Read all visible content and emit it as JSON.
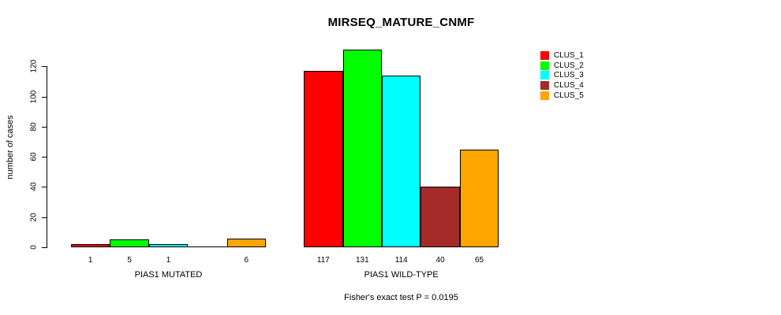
{
  "title": "MIRSEQ_MATURE_CNMF",
  "footer": "Fisher's exact test P = 0.0195",
  "chart_data": {
    "type": "bar",
    "title": "MIRSEQ_MATURE_CNMF",
    "ylabel": "number of cases",
    "xlabel": "",
    "ylim": [
      0,
      131
    ],
    "yticks": [
      0,
      20,
      40,
      60,
      80,
      100,
      120
    ],
    "grid": false,
    "legend": {
      "position": "top-right",
      "entries": [
        {
          "label": "CLUS_1",
          "color": "#ff0000"
        },
        {
          "label": "CLUS_2",
          "color": "#00ff00"
        },
        {
          "label": "CLUS_3",
          "color": "#00ffff"
        },
        {
          "label": "CLUS_4",
          "color": "#a52a2a"
        },
        {
          "label": "CLUS_5",
          "color": "#ffa500"
        }
      ]
    },
    "series_colors": [
      "#ff0000",
      "#00ff00",
      "#00ffff",
      "#a52a2a",
      "#ffa500"
    ],
    "groups": [
      {
        "label": "PIAS1 MUTATED",
        "clusters": [
          "CLUS_1",
          "CLUS_2",
          "CLUS_3",
          "CLUS_4",
          "CLUS_5"
        ],
        "values": [
          1,
          5,
          1,
          0,
          6
        ],
        "bar_labels": [
          "1",
          "5",
          "1",
          "",
          "6"
        ]
      },
      {
        "label": "PIAS1 WILD-TYPE",
        "clusters": [
          "CLUS_1",
          "CLUS_2",
          "CLUS_3",
          "CLUS_4",
          "CLUS_5"
        ],
        "values": [
          117,
          131,
          114,
          40,
          65
        ],
        "bar_labels": [
          "117",
          "131",
          "114",
          "40",
          "65"
        ]
      }
    ],
    "annotation": "Fisher's exact test P = 0.0195"
  }
}
